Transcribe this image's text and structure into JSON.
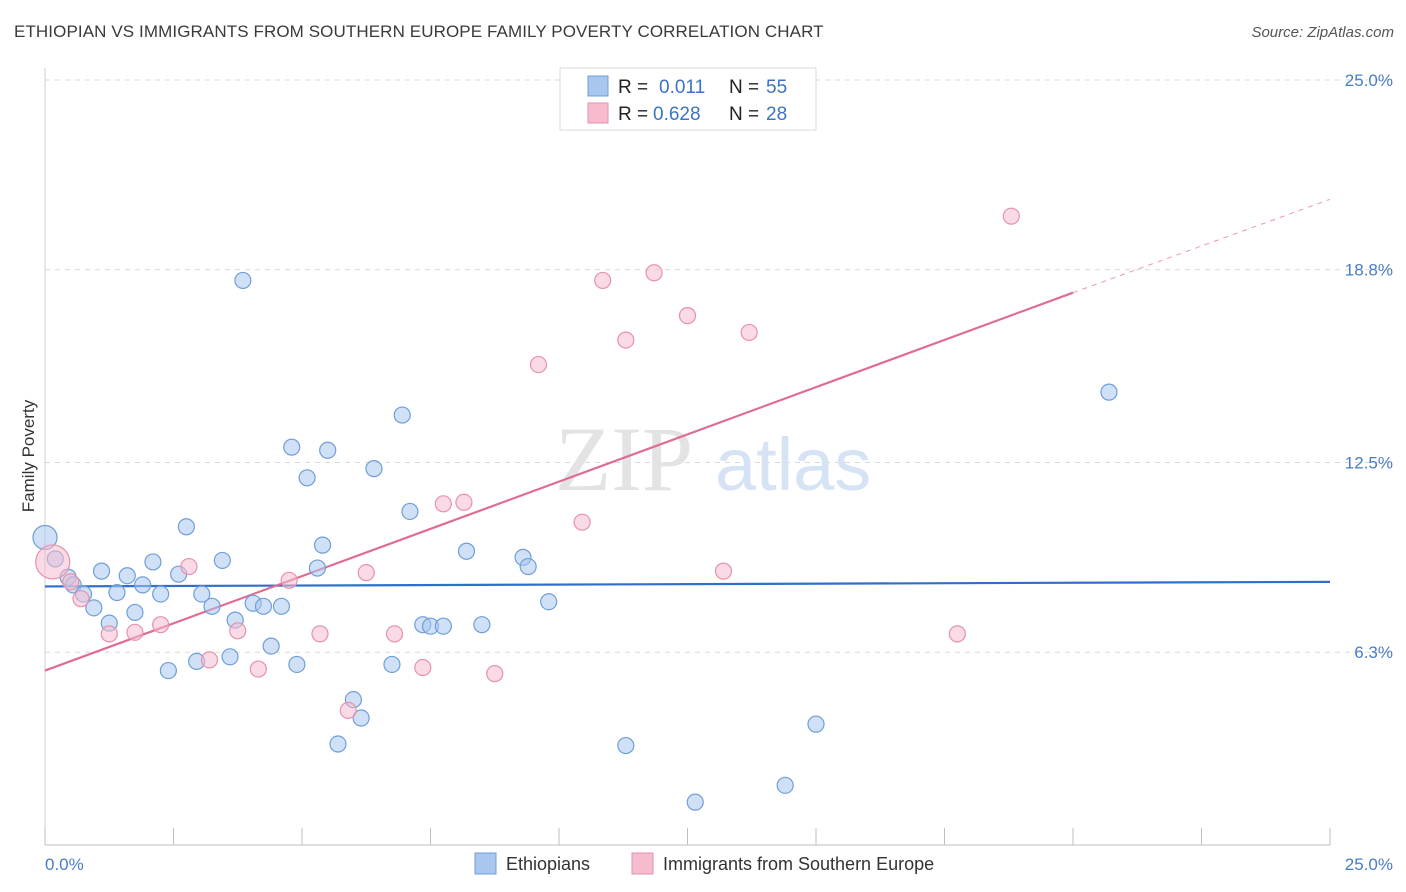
{
  "title": "ETHIOPIAN VS IMMIGRANTS FROM SOUTHERN EUROPE FAMILY POVERTY CORRELATION CHART",
  "source": "Source: ZipAtlas.com",
  "watermark": {
    "zip": "ZIP",
    "atlas": "atlas"
  },
  "colors": {
    "blue_fill": "#a9c6ee",
    "blue_stroke": "#6f9fd8",
    "blue_line": "#2f6fcc",
    "pink_fill": "#f6bccd",
    "pink_stroke": "#e692ad",
    "pink_line": "#e06b94",
    "grid": "#d9d9d9",
    "tick_text": "#4a7cc4"
  },
  "legend": {
    "r_label": "R =",
    "n_label": "N =",
    "rows": [
      {
        "series": "Ethiopians",
        "r": "0.011",
        "n": "55"
      },
      {
        "series": "Immigrants from Southern Europe",
        "r": "0.628",
        "n": "28"
      }
    ]
  },
  "chart_data": {
    "type": "scatter",
    "title": "ETHIOPIAN VS IMMIGRANTS FROM SOUTHERN EUROPE FAMILY POVERTY CORRELATION CHART",
    "xlabel": "",
    "ylabel": "Family Poverty",
    "xlim": [
      0,
      25
    ],
    "ylim": [
      0,
      25
    ],
    "x_tick_labels": [
      "0.0%",
      "25.0%"
    ],
    "y_ticks": [
      6.3,
      12.5,
      18.8,
      25.0
    ],
    "y_tick_labels": [
      "6.3%",
      "12.5%",
      "18.8%",
      "25.0%"
    ],
    "grid": true,
    "series": [
      {
        "name": "Ethiopians",
        "color": "#a9c6ee",
        "trend": {
          "x": [
            0,
            25
          ],
          "y": [
            8.45,
            8.6
          ]
        },
        "points": [
          [
            0.0,
            10.05,
            2
          ],
          [
            0.2,
            9.35,
            1
          ],
          [
            0.45,
            8.75,
            1
          ],
          [
            0.55,
            8.5,
            1
          ],
          [
            0.75,
            8.2,
            1
          ],
          [
            0.95,
            7.75,
            1
          ],
          [
            1.1,
            8.95,
            1
          ],
          [
            1.25,
            7.25,
            1
          ],
          [
            1.4,
            8.25,
            1
          ],
          [
            1.6,
            8.8,
            1
          ],
          [
            1.75,
            7.6,
            1
          ],
          [
            1.9,
            8.5,
            1
          ],
          [
            2.1,
            9.25,
            1
          ],
          [
            2.25,
            8.2,
            1
          ],
          [
            2.4,
            5.7,
            1
          ],
          [
            2.6,
            8.85,
            1
          ],
          [
            2.75,
            10.4,
            1
          ],
          [
            2.95,
            6.0,
            1
          ],
          [
            3.05,
            8.2,
            1
          ],
          [
            3.25,
            7.8,
            1
          ],
          [
            3.45,
            9.3,
            1
          ],
          [
            3.6,
            6.15,
            1
          ],
          [
            3.7,
            7.35,
            1
          ],
          [
            3.85,
            18.45,
            1
          ],
          [
            4.05,
            7.9,
            1
          ],
          [
            4.25,
            7.8,
            1
          ],
          [
            4.4,
            6.5,
            1
          ],
          [
            4.6,
            7.8,
            1
          ],
          [
            4.8,
            13.0,
            1
          ],
          [
            4.9,
            5.9,
            1
          ],
          [
            5.1,
            12.0,
            1
          ],
          [
            5.3,
            9.05,
            1
          ],
          [
            5.4,
            9.8,
            1
          ],
          [
            5.5,
            12.9,
            1
          ],
          [
            5.7,
            3.3,
            1
          ],
          [
            6.0,
            4.75,
            1
          ],
          [
            6.15,
            4.15,
            1
          ],
          [
            6.4,
            12.3,
            1
          ],
          [
            6.75,
            5.9,
            1
          ],
          [
            6.95,
            14.05,
            1
          ],
          [
            7.1,
            10.9,
            1
          ],
          [
            7.35,
            7.2,
            1
          ],
          [
            7.5,
            7.15,
            1
          ],
          [
            7.75,
            7.15,
            1
          ],
          [
            8.2,
            9.6,
            1
          ],
          [
            8.5,
            7.2,
            1
          ],
          [
            9.3,
            9.4,
            1
          ],
          [
            9.4,
            9.1,
            1
          ],
          [
            9.8,
            7.95,
            1
          ],
          [
            11.3,
            3.25,
            1
          ],
          [
            11.6,
            24.7,
            1
          ],
          [
            12.65,
            1.4,
            1
          ],
          [
            14.4,
            1.95,
            1
          ],
          [
            15.0,
            3.95,
            1
          ],
          [
            20.7,
            14.8,
            1
          ]
        ]
      },
      {
        "name": "Immigrants from Southern Europe",
        "color": "#f6bccd",
        "trend": {
          "x": [
            0,
            20
          ],
          "y": [
            5.7,
            18.05
          ],
          "dashed_to": [
            25,
            21.1
          ]
        },
        "points": [
          [
            0.15,
            9.25,
            3
          ],
          [
            0.5,
            8.6,
            1
          ],
          [
            0.7,
            8.05,
            1
          ],
          [
            1.25,
            6.9,
            1
          ],
          [
            1.75,
            6.95,
            1
          ],
          [
            2.25,
            7.2,
            1
          ],
          [
            2.8,
            9.1,
            1
          ],
          [
            3.2,
            6.05,
            1
          ],
          [
            3.75,
            7.0,
            1
          ],
          [
            4.15,
            5.75,
            1
          ],
          [
            4.75,
            8.65,
            1
          ],
          [
            5.35,
            6.9,
            1
          ],
          [
            5.9,
            4.4,
            1
          ],
          [
            6.25,
            8.9,
            1
          ],
          [
            6.8,
            6.9,
            1
          ],
          [
            7.35,
            5.8,
            1
          ],
          [
            7.75,
            11.15,
            1
          ],
          [
            8.15,
            11.2,
            1
          ],
          [
            8.75,
            5.6,
            1
          ],
          [
            9.6,
            15.7,
            1
          ],
          [
            10.45,
            10.55,
            1
          ],
          [
            10.85,
            18.45,
            1
          ],
          [
            11.3,
            16.5,
            1
          ],
          [
            11.85,
            18.7,
            1
          ],
          [
            12.5,
            17.3,
            1
          ],
          [
            13.2,
            8.95,
            1
          ],
          [
            13.7,
            16.75,
            1
          ],
          [
            17.75,
            6.9,
            1
          ],
          [
            18.8,
            20.55,
            1
          ]
        ]
      }
    ]
  }
}
